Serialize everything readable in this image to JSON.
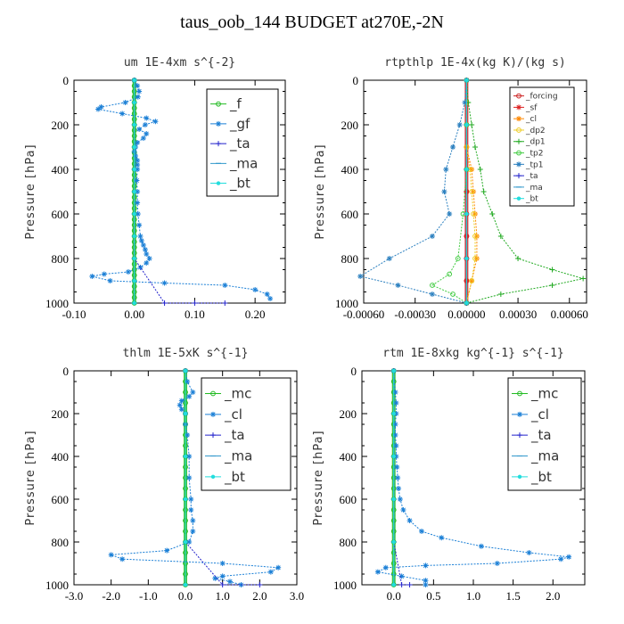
{
  "figure": {
    "title": "taus_oob_144  BUDGET at270E,-2N"
  },
  "chart_data": [
    {
      "type": "line",
      "title": "um  1E-4xm s^{-2}",
      "ylabel": "Pressure [hPa]",
      "xlim": [
        -0.1,
        0.25
      ],
      "ylim": [
        1000,
        0
      ],
      "xticks": [
        -0.1,
        0.0,
        0.1,
        0.2
      ],
      "xtick_labels": [
        "-0.10",
        "0.00",
        "0.10",
        "0.20"
      ],
      "yticks": [
        0,
        200,
        400,
        600,
        800,
        1000
      ],
      "ytick_labels": [
        "0",
        "200",
        "400",
        "600",
        "800",
        "1000"
      ],
      "legend_position": "top-right",
      "series": [
        {
          "name": "_f",
          "color": "#22bb22",
          "marker": "circle",
          "x": [
            0,
            0,
            0,
            0,
            0,
            0,
            0,
            0,
            0,
            0,
            0,
            0,
            0,
            0,
            0,
            0,
            0,
            0,
            0,
            0,
            0,
            0,
            0,
            0,
            0,
            0,
            0,
            0,
            0,
            0,
            0,
            0,
            0,
            0,
            0,
            0,
            0,
            0,
            0,
            0,
            0
          ],
          "y": [
            0,
            25,
            50,
            75,
            100,
            125,
            150,
            175,
            200,
            225,
            250,
            275,
            300,
            325,
            350,
            375,
            400,
            425,
            450,
            475,
            500,
            525,
            550,
            575,
            600,
            625,
            650,
            675,
            700,
            725,
            750,
            775,
            800,
            825,
            850,
            875,
            900,
            925,
            950,
            975,
            1000
          ]
        },
        {
          "name": "_gf",
          "color": "#1a7fd6",
          "marker": "star",
          "x": [
            0.0,
            0.005,
            0.008,
            0.006,
            -0.015,
            -0.055,
            -0.06,
            -0.02,
            0.02,
            0.035,
            0.018,
            0.008,
            0.02,
            0.015,
            0.005,
            0.002,
            0.0,
            0.002,
            0.005,
            0.005,
            0.005,
            0.004,
            0.005,
            0.005,
            0.006,
            0.008,
            0.01,
            0.012,
            0.015,
            0.018,
            0.02,
            0.025,
            0.02,
            0.01,
            -0.01,
            -0.05,
            -0.07,
            -0.04,
            0.05,
            0.15,
            0.2,
            0.22,
            0.225
          ],
          "y": [
            0,
            25,
            50,
            75,
            100,
            120,
            130,
            150,
            170,
            185,
            200,
            220,
            240,
            260,
            280,
            300,
            320,
            340,
            360,
            380,
            400,
            450,
            500,
            550,
            600,
            650,
            700,
            720,
            740,
            760,
            780,
            800,
            820,
            840,
            860,
            870,
            880,
            900,
            910,
            920,
            940,
            960,
            980
          ]
        },
        {
          "name": "_ta",
          "color": "#2222cc",
          "marker": "plus",
          "x": [
            0.0,
            0.0,
            0.0,
            0.0,
            0.0,
            0.05,
            0.1,
            0.15
          ],
          "y": [
            0,
            200,
            400,
            600,
            800,
            1000,
            1000,
            1000
          ]
        },
        {
          "name": "_ma",
          "color": "#3399cc",
          "marker": "dash",
          "x": [
            0,
            0,
            0,
            0,
            0,
            0,
            0,
            0,
            0,
            0,
            0
          ],
          "y": [
            0,
            100,
            200,
            300,
            400,
            500,
            600,
            700,
            800,
            900,
            1000
          ]
        },
        {
          "name": "_bt",
          "color": "#22dddd",
          "marker": "dot",
          "x": [
            0,
            0,
            0,
            0,
            0,
            0,
            0,
            0,
            0,
            0,
            0
          ],
          "y": [
            0,
            100,
            200,
            300,
            400,
            500,
            600,
            700,
            800,
            900,
            1000
          ]
        }
      ]
    },
    {
      "type": "line",
      "title": "rtpthlp  1E-4x(kg K)/(kg s)",
      "ylabel": "Pressure [hPa]",
      "xlim": [
        -0.0006,
        0.0007
      ],
      "ylim": [
        1000,
        0
      ],
      "xticks": [
        -0.0006,
        -0.0003,
        0.0,
        0.0003,
        0.0006
      ],
      "xtick_labels": [
        "-0.00060",
        "-0.00030",
        "0.00000",
        "0.00030",
        "0.00060"
      ],
      "yticks": [
        0,
        200,
        400,
        600,
        800,
        1000
      ],
      "ytick_labels": [
        "0",
        "200",
        "400",
        "600",
        "800",
        "1000"
      ],
      "legend_position": "top-right",
      "series": [
        {
          "name": "_forcing",
          "color": "#cc2222",
          "marker": "circle",
          "x": [
            0,
            0,
            0,
            0,
            0,
            0,
            0,
            0,
            0,
            0,
            0
          ],
          "y": [
            0,
            100,
            200,
            300,
            400,
            500,
            600,
            700,
            800,
            900,
            1000
          ]
        },
        {
          "name": "_sf",
          "color": "#dd2222",
          "marker": "star",
          "x": [
            0,
            0,
            0,
            0,
            0,
            0,
            0,
            0,
            0,
            0,
            0
          ],
          "y": [
            0,
            100,
            200,
            300,
            400,
            500,
            600,
            700,
            800,
            900,
            1000
          ]
        },
        {
          "name": "_cl",
          "color": "#ff8800",
          "marker": "star",
          "x": [
            0,
            0,
            0,
            0,
            3e-05,
            4e-05,
            5e-05,
            6e-05,
            6e-05,
            3e-05,
            0.0
          ],
          "y": [
            0,
            100,
            200,
            300,
            400,
            500,
            600,
            700,
            800,
            900,
            1000
          ]
        },
        {
          "name": "_dp2",
          "color": "#eecc22",
          "marker": "circle",
          "x": [
            0,
            0,
            0,
            0,
            2e-05,
            3e-05,
            4e-05,
            5e-05,
            5e-05,
            3e-05,
            0.0
          ],
          "y": [
            0,
            100,
            200,
            300,
            400,
            500,
            600,
            700,
            800,
            900,
            1000
          ]
        },
        {
          "name": "_dp1",
          "color": "#22aa22",
          "marker": "plus",
          "x": [
            0,
            1e-05,
            3e-05,
            5e-05,
            8e-05,
            0.0001,
            0.00015,
            0.0002,
            0.0003,
            0.0005,
            0.00068,
            0.0005,
            0.0002,
            0.0
          ],
          "y": [
            0,
            100,
            200,
            300,
            400,
            500,
            600,
            700,
            800,
            850,
            890,
            920,
            960,
            1000
          ]
        },
        {
          "name": "_tp2",
          "color": "#44cc44",
          "marker": "circle",
          "x": [
            0,
            0,
            0,
            -2e-05,
            -5e-05,
            -0.0001,
            -0.0002,
            -8e-05,
            0.0
          ],
          "y": [
            0,
            200,
            400,
            600,
            800,
            870,
            920,
            960,
            1000
          ]
        },
        {
          "name": "_tp1",
          "color": "#2a7fbf",
          "marker": "star",
          "x": [
            0,
            -1e-05,
            -4e-05,
            -8e-05,
            -0.00012,
            -0.00013,
            -0.0001,
            -0.0002,
            -0.00045,
            -0.00062,
            -0.0004,
            -0.0002,
            0.0
          ],
          "y": [
            0,
            100,
            200,
            300,
            400,
            500,
            600,
            700,
            800,
            880,
            920,
            960,
            1000
          ]
        },
        {
          "name": "_ta",
          "color": "#2222cc",
          "marker": "plus",
          "x": [
            0,
            0,
            0,
            0,
            0,
            0
          ],
          "y": [
            0,
            200,
            400,
            600,
            800,
            1000
          ]
        },
        {
          "name": "_ma",
          "color": "#3399cc",
          "marker": "dash",
          "x": [
            0,
            0,
            0,
            0,
            0,
            0
          ],
          "y": [
            0,
            200,
            400,
            600,
            800,
            1000
          ]
        },
        {
          "name": "_bt",
          "color": "#22dddd",
          "marker": "dot",
          "x": [
            0,
            0,
            0,
            0,
            0,
            0
          ],
          "y": [
            0,
            200,
            400,
            600,
            800,
            1000
          ]
        }
      ]
    },
    {
      "type": "line",
      "title": "thlm  1E-5xK s^{-1}",
      "ylabel": "Pressure [hPa]",
      "xlim": [
        -3.0,
        3.0
      ],
      "ylim": [
        1000,
        0
      ],
      "xticks": [
        -3.0,
        -2.0,
        -1.0,
        0.0,
        1.0,
        2.0,
        3.0
      ],
      "xtick_labels": [
        "-3.0",
        "-2.0",
        "-1.0",
        "0.0",
        "1.0",
        "2.0",
        "3.0"
      ],
      "yticks": [
        0,
        200,
        400,
        600,
        800,
        1000
      ],
      "ytick_labels": [
        "0",
        "200",
        "400",
        "600",
        "800",
        "1000"
      ],
      "legend_position": "top-right",
      "series": [
        {
          "name": "_mc",
          "color": "#22bb22",
          "marker": "circle",
          "x": [
            0,
            0,
            0,
            0,
            0,
            0,
            0,
            0,
            0,
            0,
            0,
            0,
            0,
            0,
            0,
            0,
            0,
            0,
            0,
            0,
            0
          ],
          "y": [
            0,
            50,
            100,
            150,
            200,
            250,
            300,
            350,
            400,
            450,
            500,
            550,
            600,
            650,
            700,
            750,
            800,
            850,
            900,
            950,
            1000
          ]
        },
        {
          "name": "_cl",
          "color": "#1a7fd6",
          "marker": "star",
          "x": [
            0.0,
            0.05,
            0.2,
            0.1,
            -0.1,
            -0.15,
            -0.1,
            0.0,
            0.0,
            0.05,
            0.1,
            0.1,
            0.15,
            0.15,
            0.2,
            0.2,
            0.1,
            -0.5,
            -2.0,
            -1.7,
            1.0,
            2.5,
            2.3,
            1.0,
            0.8,
            1.2,
            1.5
          ],
          "y": [
            0,
            50,
            100,
            120,
            140,
            160,
            180,
            200,
            250,
            300,
            400,
            500,
            600,
            650,
            700,
            750,
            800,
            840,
            860,
            880,
            900,
            920,
            940,
            960,
            970,
            985,
            1000
          ]
        },
        {
          "name": "_ta",
          "color": "#2222cc",
          "marker": "plus",
          "x": [
            0,
            0,
            0,
            0,
            0,
            1.0,
            2.0
          ],
          "y": [
            0,
            200,
            400,
            600,
            800,
            1000,
            1000
          ]
        },
        {
          "name": "_ma",
          "color": "#3399cc",
          "marker": "dash",
          "x": [
            0,
            0,
            0,
            0,
            0,
            0
          ],
          "y": [
            0,
            200,
            400,
            600,
            800,
            1000
          ]
        },
        {
          "name": "_bt",
          "color": "#22dddd",
          "marker": "dot",
          "x": [
            0,
            0,
            0,
            0,
            0,
            0
          ],
          "y": [
            0,
            200,
            400,
            600,
            800,
            1000
          ]
        }
      ]
    },
    {
      "type": "line",
      "title": "rtm  1E-8xkg kg^{-1} s^{-1}",
      "ylabel": "Pressure [hPa]",
      "xlim": [
        -0.4,
        2.4
      ],
      "ylim": [
        1000,
        0
      ],
      "xticks": [
        0.0,
        0.5,
        1.0,
        1.5,
        2.0
      ],
      "xtick_labels": [
        "0.0",
        "0.5",
        "1.0",
        "1.5",
        "2.0"
      ],
      "yticks": [
        0,
        200,
        400,
        600,
        800,
        1000
      ],
      "ytick_labels": [
        "0",
        "200",
        "400",
        "600",
        "800",
        "1000"
      ],
      "legend_position": "top-right",
      "series": [
        {
          "name": "_mc",
          "color": "#22bb22",
          "marker": "circle",
          "x": [
            0,
            0,
            0,
            0,
            0,
            0,
            0,
            0,
            0,
            0,
            0,
            0,
            0,
            0,
            0,
            0,
            0,
            0,
            0,
            0,
            0
          ],
          "y": [
            0,
            50,
            100,
            150,
            200,
            250,
            300,
            350,
            400,
            450,
            500,
            550,
            600,
            650,
            700,
            750,
            800,
            850,
            900,
            950,
            1000
          ]
        },
        {
          "name": "_cl",
          "color": "#1a7fd6",
          "marker": "star",
          "x": [
            0.0,
            0.02,
            0.03,
            0.03,
            0.02,
            0.02,
            0.03,
            0.03,
            0.04,
            0.05,
            0.06,
            0.08,
            0.12,
            0.2,
            0.35,
            0.6,
            1.1,
            1.7,
            2.2,
            2.1,
            1.3,
            0.4,
            -0.1,
            -0.2,
            0.1,
            0.4,
            0.4
          ],
          "y": [
            0,
            100,
            150,
            200,
            250,
            300,
            350,
            400,
            450,
            500,
            550,
            600,
            650,
            700,
            750,
            780,
            820,
            850,
            870,
            880,
            900,
            910,
            920,
            940,
            960,
            980,
            1000
          ]
        },
        {
          "name": "_ta",
          "color": "#2222cc",
          "marker": "plus",
          "x": [
            0,
            0,
            0,
            0,
            0,
            0.1,
            0.2
          ],
          "y": [
            0,
            200,
            400,
            600,
            800,
            1000,
            1000
          ]
        },
        {
          "name": "_ma",
          "color": "#3399cc",
          "marker": "dash",
          "x": [
            0,
            0,
            0,
            0,
            0,
            0
          ],
          "y": [
            0,
            200,
            400,
            600,
            800,
            1000
          ]
        },
        {
          "name": "_bt",
          "color": "#22dddd",
          "marker": "dot",
          "x": [
            0,
            0,
            0,
            0,
            0,
            0
          ],
          "y": [
            0,
            200,
            400,
            600,
            800,
            1000
          ]
        }
      ]
    }
  ]
}
